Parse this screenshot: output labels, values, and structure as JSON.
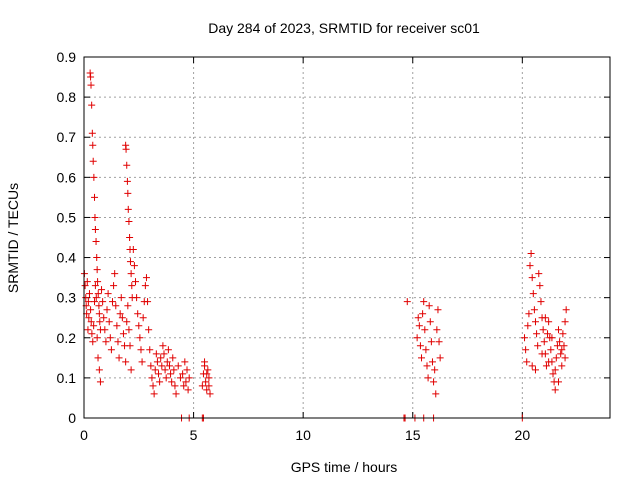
{
  "chart_data": {
    "type": "scatter",
    "title": "Day 284 of 2023, SRMTID for receiver sc01",
    "xlabel": "GPS time / hours",
    "ylabel": "SRMTID / TECUs",
    "xlim": [
      0,
      24
    ],
    "ylim": [
      0,
      0.9
    ],
    "xticks": [
      0,
      5,
      10,
      15,
      20
    ],
    "xtick_labels": [
      "0",
      "5",
      "10",
      "15",
      "20"
    ],
    "yticks": [
      0,
      0.1,
      0.2,
      0.3,
      0.4,
      0.5,
      0.6,
      0.7,
      0.8,
      0.9
    ],
    "ytick_labels": [
      "0",
      "0.1",
      "0.2",
      "0.3",
      "0.4",
      "0.5",
      "0.6",
      "0.7",
      "0.8",
      "0.9"
    ],
    "grid": true,
    "marker": "+",
    "color": "#e00000",
    "series": [
      {
        "name": "sc01",
        "points": [
          [
            0.02,
            0.36
          ],
          [
            0.05,
            0.33
          ],
          [
            0.08,
            0.3
          ],
          [
            0.1,
            0.28
          ],
          [
            0.12,
            0.26
          ],
          [
            0.15,
            0.34
          ],
          [
            0.18,
            0.22
          ],
          [
            0.2,
            0.29
          ],
          [
            0.22,
            0.25
          ],
          [
            0.25,
            0.31
          ],
          [
            0.28,
            0.86
          ],
          [
            0.3,
            0.85
          ],
          [
            0.32,
            0.83
          ],
          [
            0.35,
            0.78
          ],
          [
            0.38,
            0.71
          ],
          [
            0.4,
            0.68
          ],
          [
            0.42,
            0.64
          ],
          [
            0.45,
            0.6
          ],
          [
            0.48,
            0.55
          ],
          [
            0.5,
            0.5
          ],
          [
            0.52,
            0.47
          ],
          [
            0.55,
            0.44
          ],
          [
            0.58,
            0.4
          ],
          [
            0.6,
            0.37
          ],
          [
            0.62,
            0.34
          ],
          [
            0.65,
            0.31
          ],
          [
            0.68,
            0.28
          ],
          [
            0.7,
            0.26
          ],
          [
            0.72,
            0.24
          ],
          [
            0.75,
            0.22
          ],
          [
            0.3,
            0.27
          ],
          [
            0.33,
            0.24
          ],
          [
            0.36,
            0.21
          ],
          [
            0.4,
            0.19
          ],
          [
            0.44,
            0.23
          ],
          [
            0.48,
            0.29
          ],
          [
            0.52,
            0.33
          ],
          [
            0.56,
            0.3
          ],
          [
            0.6,
            0.2
          ],
          [
            0.64,
            0.15
          ],
          [
            0.7,
            0.12
          ],
          [
            0.75,
            0.09
          ],
          [
            0.8,
            0.32
          ],
          [
            0.85,
            0.29
          ],
          [
            0.9,
            0.25
          ],
          [
            0.95,
            0.22
          ],
          [
            1.0,
            0.19
          ],
          [
            1.05,
            0.27
          ],
          [
            1.1,
            0.31
          ],
          [
            1.15,
            0.24
          ],
          [
            1.2,
            0.2
          ],
          [
            1.25,
            0.17
          ],
          [
            1.3,
            0.29
          ],
          [
            1.35,
            0.33
          ],
          [
            1.4,
            0.36
          ],
          [
            1.45,
            0.28
          ],
          [
            1.5,
            0.23
          ],
          [
            1.55,
            0.19
          ],
          [
            1.6,
            0.15
          ],
          [
            1.65,
            0.26
          ],
          [
            1.7,
            0.3
          ],
          [
            1.75,
            0.25
          ],
          [
            1.8,
            0.21
          ],
          [
            1.85,
            0.18
          ],
          [
            1.9,
            0.14
          ],
          [
            1.95,
            0.24
          ],
          [
            2.0,
            0.28
          ],
          [
            2.05,
            0.22
          ],
          [
            2.1,
            0.18
          ],
          [
            2.15,
            0.12
          ],
          [
            1.9,
            0.68
          ],
          [
            1.92,
            0.67
          ],
          [
            1.95,
            0.63
          ],
          [
            1.98,
            0.59
          ],
          [
            2.0,
            0.56
          ],
          [
            2.02,
            0.52
          ],
          [
            2.05,
            0.49
          ],
          [
            2.08,
            0.45
          ],
          [
            2.1,
            0.42
          ],
          [
            2.12,
            0.39
          ],
          [
            2.15,
            0.36
          ],
          [
            2.18,
            0.33
          ],
          [
            2.2,
            0.3
          ],
          [
            2.25,
            0.42
          ],
          [
            2.3,
            0.38
          ],
          [
            2.35,
            0.34
          ],
          [
            2.4,
            0.3
          ],
          [
            2.45,
            0.26
          ],
          [
            2.5,
            0.23
          ],
          [
            2.55,
            0.2
          ],
          [
            2.6,
            0.17
          ],
          [
            2.65,
            0.14
          ],
          [
            2.7,
            0.25
          ],
          [
            2.75,
            0.29
          ],
          [
            2.8,
            0.33
          ],
          [
            2.85,
            0.35
          ],
          [
            2.9,
            0.29
          ],
          [
            2.95,
            0.22
          ],
          [
            3.0,
            0.17
          ],
          [
            3.05,
            0.13
          ],
          [
            3.1,
            0.1
          ],
          [
            3.15,
            0.08
          ],
          [
            3.2,
            0.06
          ],
          [
            3.25,
            0.12
          ],
          [
            3.3,
            0.16
          ],
          [
            3.35,
            0.14
          ],
          [
            3.4,
            0.11
          ],
          [
            3.45,
            0.09
          ],
          [
            3.5,
            0.15
          ],
          [
            3.55,
            0.13
          ],
          [
            3.6,
            0.18
          ],
          [
            3.65,
            0.16
          ],
          [
            3.7,
            0.12
          ],
          [
            3.75,
            0.1
          ],
          [
            3.8,
            0.14
          ],
          [
            3.85,
            0.17
          ],
          [
            3.9,
            0.13
          ],
          [
            3.95,
            0.11
          ],
          [
            4.0,
            0.09
          ],
          [
            4.05,
            0.15
          ],
          [
            4.1,
            0.12
          ],
          [
            4.15,
            0.08
          ],
          [
            4.2,
            0.06
          ],
          [
            4.3,
            0.13
          ],
          [
            4.4,
            0.1
          ],
          [
            4.5,
            0.11
          ],
          [
            4.55,
            0.08
          ],
          [
            4.6,
            0.14
          ],
          [
            4.65,
            0.09
          ],
          [
            4.7,
            0.12
          ],
          [
            4.75,
            0.07
          ],
          [
            4.8,
            0.1
          ],
          [
            5.4,
            0.08
          ],
          [
            5.45,
            0.11
          ],
          [
            5.5,
            0.13
          ],
          [
            5.55,
            0.09
          ],
          [
            5.6,
            0.07
          ],
          [
            5.65,
            0.12
          ],
          [
            5.7,
            0.1
          ],
          [
            5.75,
            0.06
          ],
          [
            5.5,
            0.14
          ],
          [
            5.6,
            0.11
          ],
          [
            5.7,
            0.08
          ],
          [
            4.45,
            0.0
          ],
          [
            4.8,
            0.0
          ],
          [
            5.4,
            0.0
          ],
          [
            5.45,
            0.0
          ],
          [
            14.6,
            0.0
          ],
          [
            14.65,
            0.0
          ],
          [
            14.75,
            0.29
          ],
          [
            15.1,
            0.0
          ],
          [
            15.2,
            0.2
          ],
          [
            15.25,
            0.25
          ],
          [
            15.3,
            0.23
          ],
          [
            15.35,
            0.18
          ],
          [
            15.4,
            0.15
          ],
          [
            15.45,
            0.26
          ],
          [
            15.5,
            0.29
          ],
          [
            15.55,
            0.22
          ],
          [
            15.6,
            0.17
          ],
          [
            15.65,
            0.13
          ],
          [
            15.7,
            0.1
          ],
          [
            15.75,
            0.28
          ],
          [
            15.8,
            0.24
          ],
          [
            15.85,
            0.19
          ],
          [
            15.9,
            0.14
          ],
          [
            15.95,
            0.09
          ],
          [
            16.0,
            0.12
          ],
          [
            16.05,
            0.06
          ],
          [
            16.1,
            0.22
          ],
          [
            16.15,
            0.27
          ],
          [
            16.2,
            0.19
          ],
          [
            16.25,
            0.15
          ],
          [
            15.5,
            0.0
          ],
          [
            15.95,
            0.0
          ],
          [
            20.0,
            0.0
          ],
          [
            20.1,
            0.2
          ],
          [
            20.15,
            0.17
          ],
          [
            20.2,
            0.14
          ],
          [
            20.25,
            0.23
          ],
          [
            20.3,
            0.26
          ],
          [
            20.35,
            0.38
          ],
          [
            20.4,
            0.41
          ],
          [
            20.45,
            0.35
          ],
          [
            20.5,
            0.31
          ],
          [
            20.55,
            0.27
          ],
          [
            20.6,
            0.24
          ],
          [
            20.65,
            0.21
          ],
          [
            20.7,
            0.18
          ],
          [
            20.75,
            0.36
          ],
          [
            20.8,
            0.33
          ],
          [
            20.85,
            0.29
          ],
          [
            20.9,
            0.25
          ],
          [
            20.95,
            0.22
          ],
          [
            21.0,
            0.19
          ],
          [
            21.05,
            0.16
          ],
          [
            21.1,
            0.13
          ],
          [
            21.15,
            0.21
          ],
          [
            21.2,
            0.24
          ],
          [
            21.25,
            0.2
          ],
          [
            21.3,
            0.17
          ],
          [
            21.35,
            0.14
          ],
          [
            21.4,
            0.11
          ],
          [
            21.45,
            0.09
          ],
          [
            21.5,
            0.07
          ],
          [
            21.55,
            0.15
          ],
          [
            21.6,
            0.18
          ],
          [
            21.65,
            0.22
          ],
          [
            21.7,
            0.19
          ],
          [
            21.75,
            0.16
          ],
          [
            21.8,
            0.13
          ],
          [
            21.85,
            0.21
          ],
          [
            21.9,
            0.18
          ],
          [
            21.95,
            0.24
          ],
          [
            22.0,
            0.27
          ],
          [
            20.45,
            0.13
          ],
          [
            20.6,
            0.12
          ],
          [
            20.9,
            0.16
          ],
          [
            21.05,
            0.25
          ],
          [
            21.2,
            0.14
          ],
          [
            21.35,
            0.2
          ],
          [
            21.5,
            0.12
          ],
          [
            21.65,
            0.09
          ],
          [
            21.8,
            0.17
          ],
          [
            21.95,
            0.15
          ]
        ]
      }
    ]
  }
}
